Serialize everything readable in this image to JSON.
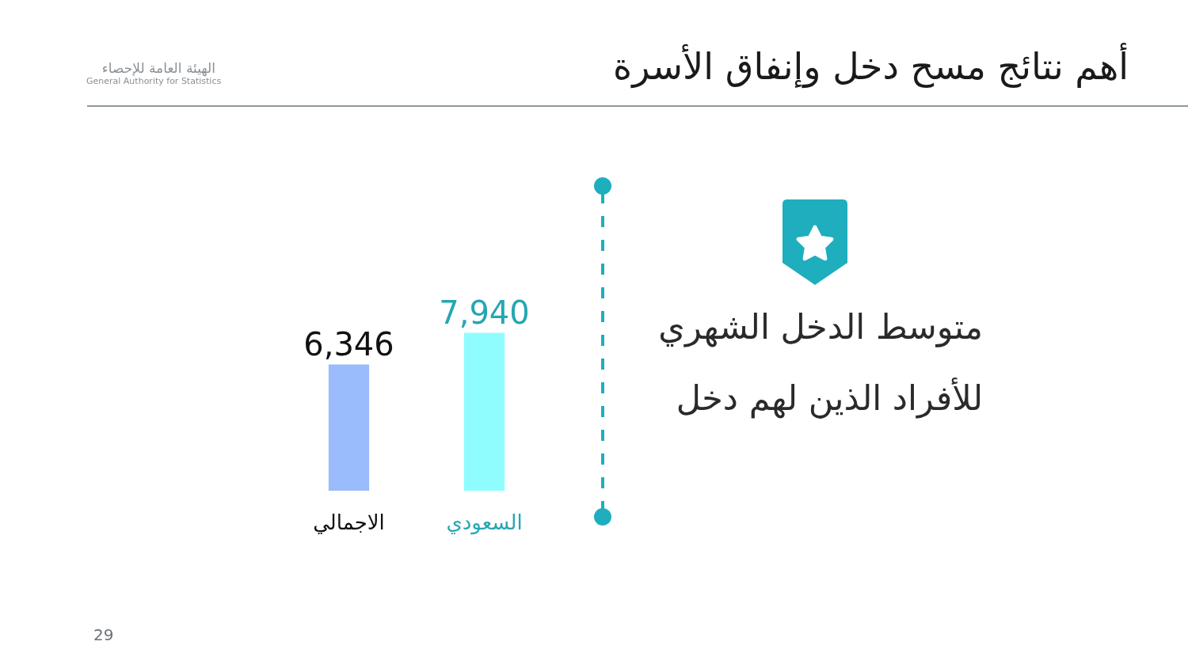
{
  "chart_data": {
    "type": "bar",
    "title": "أهم نتائج مسح دخل وإنفاق الأسرة",
    "subtitle": "متوسط الدخل الشهري للأفراد الذين لهم دخل",
    "categories": [
      "الاجمالي",
      "السعودي"
    ],
    "values": [
      6346,
      7940
    ],
    "value_labels": [
      "6,346",
      "7,940"
    ],
    "colors": [
      "#9bbcfc",
      "#8ffdfd"
    ],
    "tick_labels": "x",
    "annotations": [
      "الهيئة العامة للإحصاء",
      "General Authority for Statistics",
      "29"
    ]
  }
}
